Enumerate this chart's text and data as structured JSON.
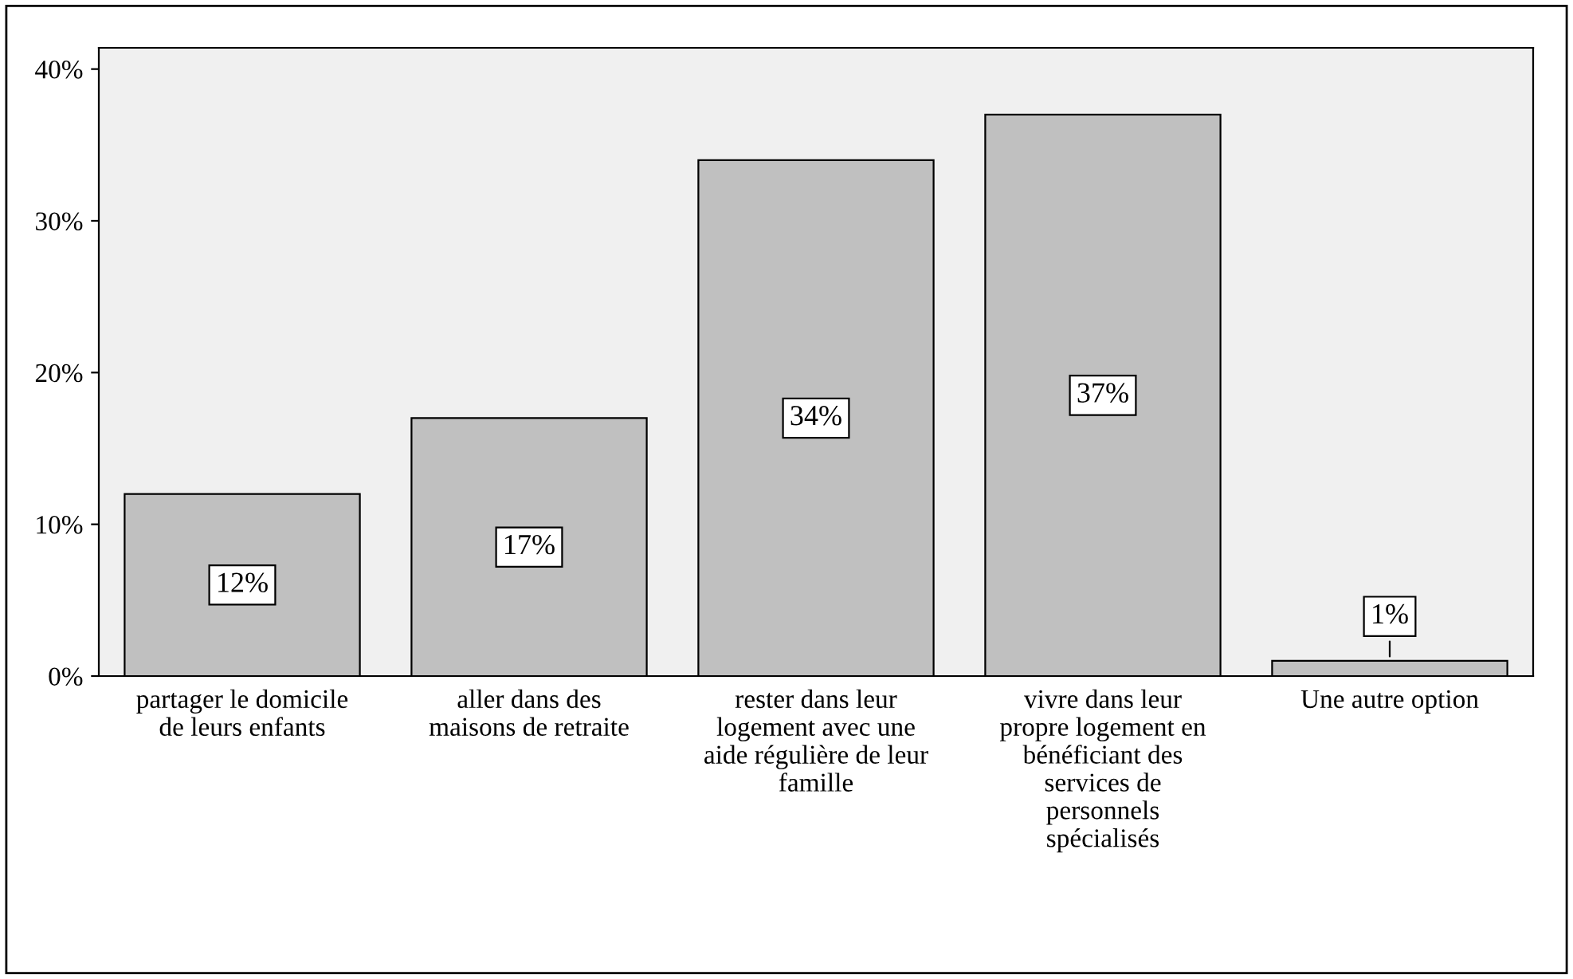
{
  "chart_data": {
    "type": "bar",
    "categories": [
      "partager le domicile\nde leurs enfants",
      "aller dans des\nmaisons de retraite",
      "rester dans leur\nlogement avec une\naide régulière de leur\nfamille",
      "vivre dans leur\npropre logement en\nbénéficiant des\nservices de\npersonnels\nspécialisés",
      "Une autre option"
    ],
    "values": [
      12,
      17,
      34,
      37,
      1
    ],
    "color": "#c0c0c0",
    "ylim": [
      0,
      41.4
    ],
    "yticks": [
      {
        "value": 0,
        "label": "0%"
      },
      {
        "value": 10,
        "label": "10%"
      },
      {
        "value": 20,
        "label": "20%"
      },
      {
        "value": 30,
        "label": "30%"
      },
      {
        "value": 40,
        "label": "40%"
      }
    ],
    "value_labels": [
      "12%",
      "17%",
      "34%",
      "37%",
      "1%"
    ],
    "grid": false
  }
}
